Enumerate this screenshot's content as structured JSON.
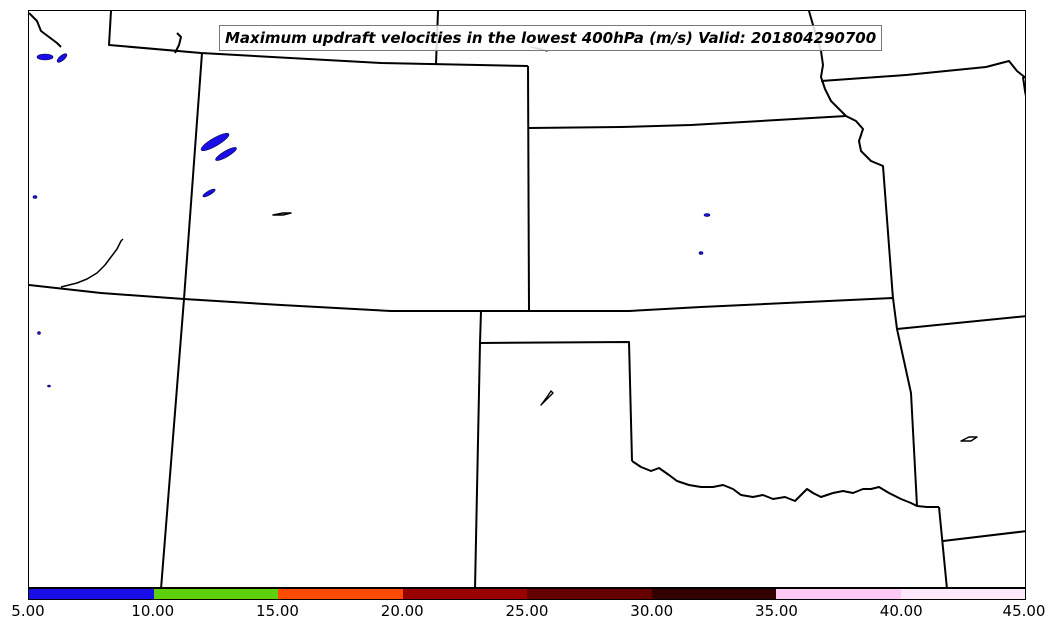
{
  "title": "Maximum updraft velocities in the lowest 400hPa (m/s) Valid: 201804290700",
  "colorbar": {
    "colors": [
      "#1a0ee8",
      "#5ed10e",
      "#ff4a00",
      "#990000",
      "#660000",
      "#330000",
      "#ffc8f5",
      "#ffe8fb"
    ],
    "tick_labels": [
      "5.00",
      "10.00",
      "15.00",
      "20.00",
      "25.00",
      "30.00",
      "35.00",
      "40.00",
      "45.00"
    ]
  },
  "map": {
    "boundary_color": "#000000",
    "feature_color": "#1a0ee8"
  }
}
